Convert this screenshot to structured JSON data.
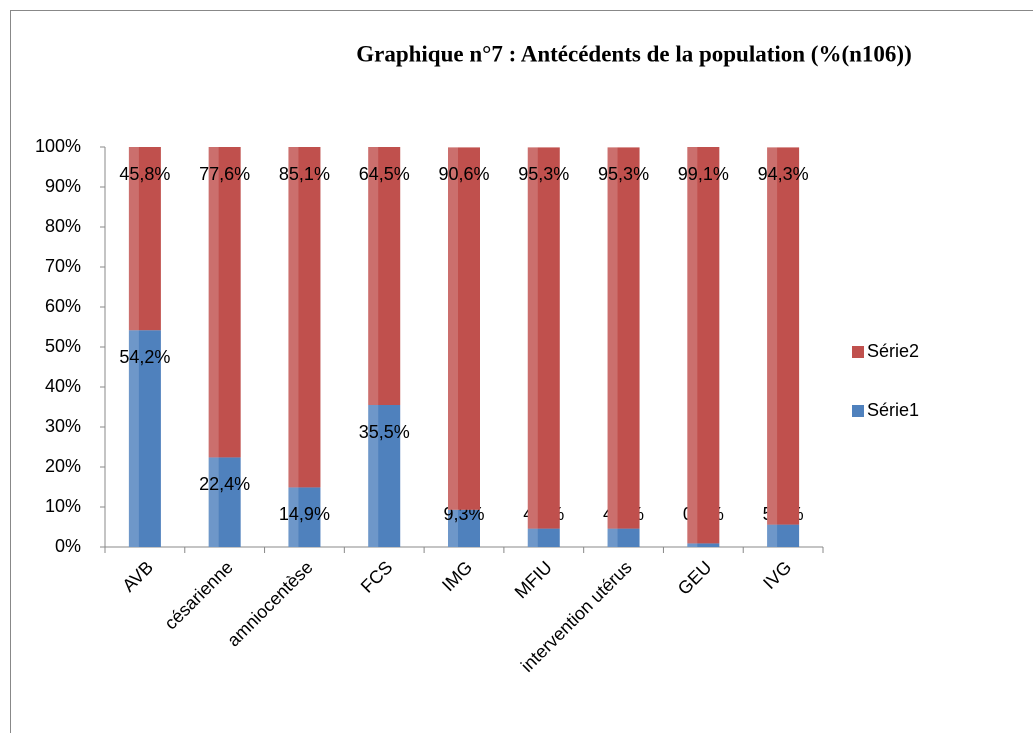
{
  "chart_data": {
    "type": "bar",
    "stacked": true,
    "title": "Graphique n°7 : Antécédents de la population (%(n106))",
    "categories": [
      "AVB",
      "césarienne",
      "amniocentèse",
      "FCS",
      "IMG",
      "MFIU",
      "intervention utérus",
      "GEU",
      "IVG"
    ],
    "series": [
      {
        "name": "Série1",
        "color": "#4f81bd",
        "values": [
          54.2,
          22.4,
          14.9,
          35.5,
          9.3,
          4.6,
          4.6,
          0.9,
          5.6
        ],
        "value_labels": [
          "54,2%",
          "22,4%",
          "14,9%",
          "35,5%",
          "9,3%",
          "4,6%",
          "4,6%",
          "0,9%",
          "5,6%"
        ]
      },
      {
        "name": "Série2",
        "color": "#c0504d",
        "values": [
          45.8,
          77.6,
          85.1,
          64.5,
          90.6,
          95.3,
          95.3,
          99.1,
          94.3
        ],
        "value_labels": [
          "45,8%",
          "77,6%",
          "85,1%",
          "64,5%",
          "90,6%",
          "95,3%",
          "95,3%",
          "99,1%",
          "94,3%"
        ]
      }
    ],
    "ylim": [
      0,
      100
    ],
    "yticks": [
      {
        "value": 0,
        "label": "0%"
      },
      {
        "value": 10,
        "label": "10%"
      },
      {
        "value": 20,
        "label": "20%"
      },
      {
        "value": 30,
        "label": "30%"
      },
      {
        "value": 40,
        "label": "40%"
      },
      {
        "value": 50,
        "label": "50%"
      },
      {
        "value": 60,
        "label": "60%"
      },
      {
        "value": 70,
        "label": "70%"
      },
      {
        "value": 80,
        "label": "80%"
      },
      {
        "value": 90,
        "label": "90%"
      },
      {
        "value": 100,
        "label": "100%"
      }
    ],
    "grid": false,
    "legend": "right"
  }
}
